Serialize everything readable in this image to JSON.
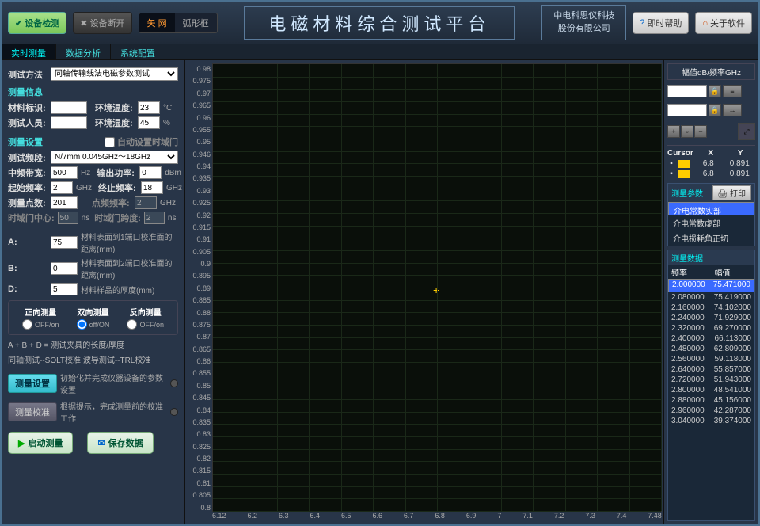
{
  "topbar": {
    "detect_btn": "设备检测",
    "disconnect_btn": "设备断开",
    "mode_tabs": [
      "矢 网",
      "弧形框"
    ],
    "title": "电磁材料综合测试平台",
    "company_line1": "中电科思仪科技",
    "company_line2": "股份有限公司",
    "help_btn": "即时帮助",
    "about_btn": "关于软件"
  },
  "main_tabs": [
    "实时测量",
    "数据分析",
    "系统配置"
  ],
  "left": {
    "method_label": "测试方法",
    "method_value": "同轴传输线法电磁参数测试",
    "info_title": "测量信息",
    "material_id_label": "材料标识:",
    "material_id_value": "",
    "env_temp_label": "环境温度:",
    "env_temp_value": "23",
    "env_temp_unit": "°C",
    "tester_label": "测试人员:",
    "tester_value": "",
    "env_humid_label": "环境湿度:",
    "env_humid_value": "45",
    "env_humid_unit": "%",
    "settings_title": "测量设置",
    "auto_time_gate": "自动设置时域门",
    "freq_std_label": "测试频段:",
    "freq_std_value": "N/7mm  0.045GHz～18GHz",
    "if_bw_label": "中频带宽:",
    "if_bw_value": "500",
    "if_bw_unit": "Hz",
    "out_power_label": "输出功率:",
    "out_power_value": "0",
    "out_power_unit": "dBm",
    "start_freq_label": "起始频率:",
    "start_freq_value": "2",
    "start_freq_unit": "GHz",
    "stop_freq_label": "终止频率:",
    "stop_freq_value": "18",
    "stop_freq_unit": "GHz",
    "points_label": "测量点数:",
    "points_value": "201",
    "pt_freq_label": "点频频率:",
    "pt_freq_value": "2",
    "pt_freq_unit": "GHz",
    "gate_center_label": "时域门中心:",
    "gate_center_value": "50",
    "gate_center_unit": "ns",
    "gate_span_label": "时域门跨度:",
    "gate_span_value": "2",
    "gate_span_unit": "ns",
    "A_label": "A:",
    "A_value": "75",
    "A_desc": "材料表面到1端口校准面的距离(mm)",
    "B_label": "B:",
    "B_value": "0",
    "B_desc": "材料表面到2端口校准面的距离(mm)",
    "D_label": "D:",
    "D_value": "5",
    "D_desc": "材料样品的厚度(mm)",
    "modes": [
      {
        "title": "正向测量",
        "val": "OFF/on"
      },
      {
        "title": "双向测量",
        "val": "off/ON"
      },
      {
        "title": "反向测量",
        "val": "OFF/on"
      }
    ],
    "hint1": "A + B + D = 测试夹具的长度/厚度",
    "hint2": "同轴测试--SOLT校准    波导测试--TRL校准",
    "btn_meas_set": "测量设置",
    "btn_meas_set_desc": "初始化并完成仪器设备的参数设置",
    "btn_meas_cal": "测量校准",
    "btn_meas_cal_desc": "根据提示，完成测量前的校准工作",
    "btn_start": "启动测量",
    "btn_save": "保存数据"
  },
  "chart": {
    "y_ticks": [
      "0.98",
      "0.975",
      "0.97",
      "0.965",
      "0.96",
      "0.955",
      "0.95",
      "0.946",
      "0.94",
      "0.935",
      "0.93",
      "0.925",
      "0.92",
      "0.915",
      "0.91",
      "0.905",
      "0.9",
      "0.895",
      "0.89",
      "0.885",
      "0.88",
      "0.875",
      "0.87",
      "0.865",
      "0.86",
      "0.855",
      "0.85",
      "0.845",
      "0.84",
      "0.835",
      "0.83",
      "0.825",
      "0.82",
      "0.815",
      "0.81",
      "0.805",
      "0.8"
    ],
    "x_ticks": [
      "6.12",
      "6.2",
      "6.3",
      "6.4",
      "6.5",
      "6.6",
      "6.7",
      "6.8",
      "6.9",
      "7",
      "7.1",
      "7.2",
      "7.3",
      "7.4",
      "7.48"
    ],
    "bg": "#0a0f0a",
    "grid_color": "#1a2818"
  },
  "right": {
    "axis_label": "幅值dB/频率GHz",
    "cursor_title": "Cursor",
    "cursor_cols": [
      "X",
      "Y"
    ],
    "cursors": [
      {
        "x": "6.8",
        "y": "0.891"
      },
      {
        "x": "6.8",
        "y": "0.891"
      }
    ],
    "param_title": "测量参数",
    "print_btn": "打印",
    "params": [
      "介电常数实部",
      "介电常数虚部",
      "介电损耗角正切"
    ],
    "data_title": "测量数据",
    "data_cols": [
      "频率",
      "幅值"
    ],
    "data_rows": [
      [
        "2.000000",
        "75.471000"
      ],
      [
        "2.080000",
        "75.419000"
      ],
      [
        "2.160000",
        "74.102000"
      ],
      [
        "2.240000",
        "71.929000"
      ],
      [
        "2.320000",
        "69.270000"
      ],
      [
        "2.400000",
        "66.113000"
      ],
      [
        "2.480000",
        "62.809000"
      ],
      [
        "2.560000",
        "59.118000"
      ],
      [
        "2.640000",
        "55.857000"
      ],
      [
        "2.720000",
        "51.943000"
      ],
      [
        "2.800000",
        "48.541000"
      ],
      [
        "2.880000",
        "45.156000"
      ],
      [
        "2.960000",
        "42.287000"
      ],
      [
        "3.040000",
        "39.374000"
      ]
    ]
  }
}
